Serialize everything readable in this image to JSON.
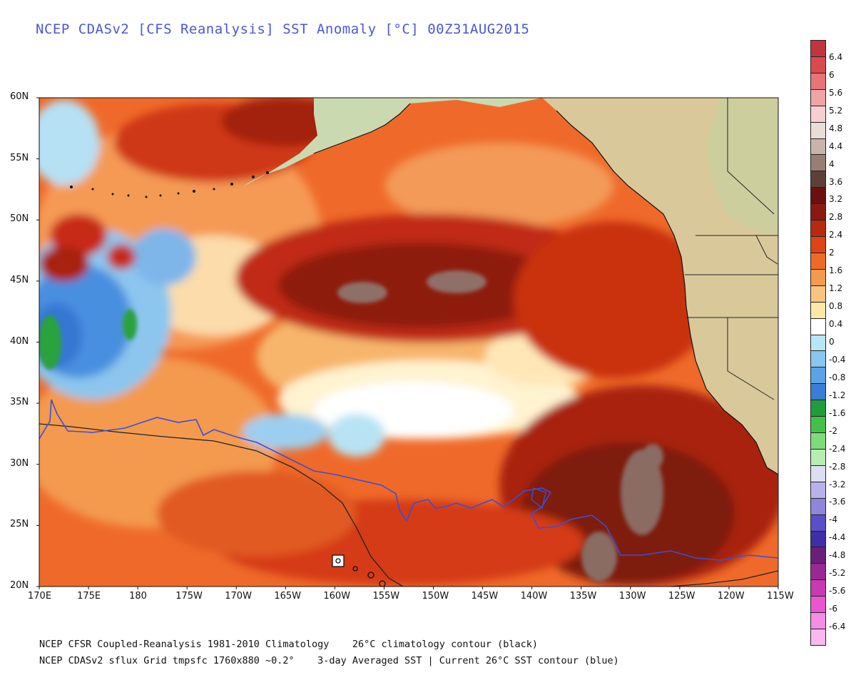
{
  "title": "NCEP CDASv2 [CFS Reanalysis] SST Anomaly [°C] 00Z31AUG2015",
  "lat_labels": [
    "60N",
    "55N",
    "50N",
    "45N",
    "40N",
    "35N",
    "30N",
    "25N",
    "20N"
  ],
  "lon_labels": [
    "170E",
    "175E",
    "180",
    "175W",
    "170W",
    "165W",
    "160W",
    "155W",
    "150W",
    "145W",
    "140W",
    "135W",
    "130W",
    "125W",
    "120W",
    "115W"
  ],
  "colorbar": {
    "labels": [
      "6.4",
      "6",
      "5.6",
      "5.2",
      "4.8",
      "4.4",
      "4",
      "3.6",
      "3.2",
      "2.8",
      "2.4",
      "2",
      "1.6",
      "1.2",
      "0.8",
      "0.4",
      "0",
      "-0.4",
      "-0.8",
      "-1.2",
      "-1.6",
      "-2",
      "-2.4",
      "-2.8",
      "-3.2",
      "-3.6",
      "-4",
      "-4.4",
      "-4.8",
      "-5.2",
      "-5.6",
      "-6",
      "-6.4"
    ],
    "colors": [
      "#c1363e",
      "#d84a50",
      "#e8747a",
      "#f1a4a6",
      "#f7cfd0",
      "#e9ddd8",
      "#c9b3aa",
      "#9a7e74",
      "#5e4039",
      "#6b1010",
      "#8a1a10",
      "#b8290f",
      "#de4414",
      "#ee6b25",
      "#f49a4f",
      "#f8c47f",
      "#fde8a8",
      "#ffffff",
      "#b8e6f4",
      "#88c7ef",
      "#5aa3e7",
      "#3a7dd7",
      "#1f9d3a",
      "#44c04a",
      "#7edb7c",
      "#b8ecb4",
      "#dcdff0",
      "#b9b2ea",
      "#8f85dc",
      "#5a4fc8",
      "#3f2ea8",
      "#6b1e7a",
      "#9a2894",
      "#c83ab4",
      "#ea55d0",
      "#f58de4",
      "#f9b8ee"
    ]
  },
  "footer": {
    "line1": "NCEP CFSR Coupled-Reanalysis 1981-2010 Climatology    26°C climatology contour (black)",
    "line2": "NCEP CDASv2 sflux Grid tmpsfc 1760x880 ~0.2°    3-day Averaged SST | Current 26°C SST contour (blue)"
  },
  "map": {
    "lat_range": [
      20,
      60
    ],
    "lon_range": [
      "170E",
      "115W"
    ],
    "field": "SST anomaly"
  }
}
